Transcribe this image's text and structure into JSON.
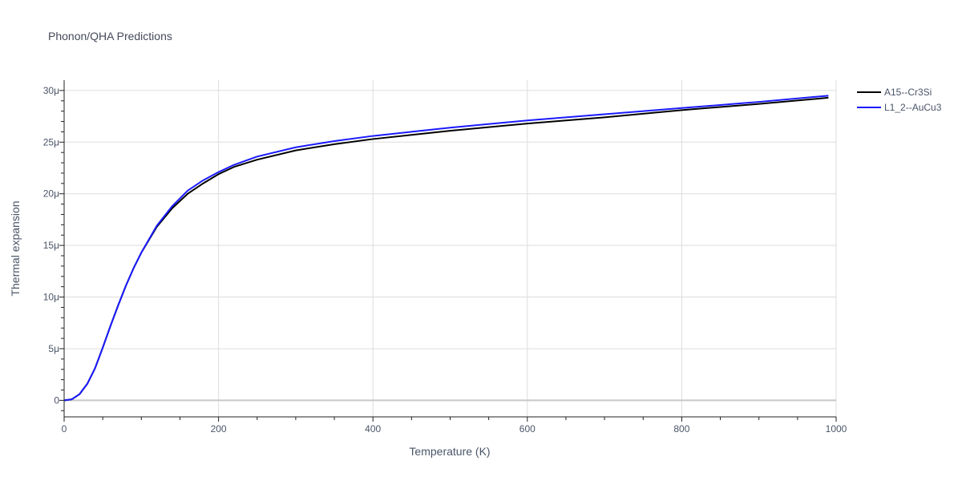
{
  "chart_data": {
    "type": "line",
    "title": "Phonon/QHA Predictions",
    "xlabel": "Temperature (K)",
    "ylabel": "Thermal expansion",
    "xlim": [
      0,
      1000
    ],
    "ylim": [
      -1.6,
      31
    ],
    "grid": true,
    "legend_position": "top-right",
    "x_ticks": [
      0,
      200,
      400,
      600,
      800,
      1000
    ],
    "x_tick_labels": [
      "0",
      "200",
      "400",
      "600",
      "800",
      "1000"
    ],
    "y_ticks": [
      0,
      5,
      10,
      15,
      20,
      25,
      30
    ],
    "y_tick_labels": [
      "0",
      "5μ",
      "10μ",
      "15μ",
      "20μ",
      "25μ",
      "30μ"
    ],
    "y_unit": "μ",
    "series": [
      {
        "name": "A15--Cr3Si",
        "color": "#000000",
        "x": [
          0,
          10,
          20,
          30,
          40,
          50,
          60,
          70,
          80,
          90,
          100,
          120,
          140,
          160,
          180,
          200,
          220,
          250,
          300,
          350,
          400,
          450,
          500,
          600,
          700,
          800,
          900,
          990
        ],
        "y": [
          0,
          0.1,
          0.6,
          1.6,
          3.1,
          5.1,
          7.2,
          9.2,
          11.1,
          12.8,
          14.3,
          16.8,
          18.6,
          20.0,
          21.0,
          21.9,
          22.6,
          23.3,
          24.2,
          24.8,
          25.3,
          25.7,
          26.1,
          26.8,
          27.4,
          28.1,
          28.7,
          29.3
        ]
      },
      {
        "name": "L1_2--AuCu3",
        "color": "#1a1aff",
        "x": [
          0,
          10,
          20,
          30,
          40,
          50,
          60,
          70,
          80,
          90,
          100,
          120,
          140,
          160,
          180,
          200,
          220,
          250,
          300,
          350,
          400,
          450,
          500,
          600,
          700,
          800,
          900,
          990
        ],
        "y": [
          0,
          0.1,
          0.6,
          1.6,
          3.1,
          5.1,
          7.2,
          9.2,
          11.1,
          12.8,
          14.3,
          16.9,
          18.8,
          20.3,
          21.3,
          22.1,
          22.8,
          23.6,
          24.5,
          25.1,
          25.6,
          26.0,
          26.4,
          27.1,
          27.7,
          28.3,
          28.9,
          29.5
        ]
      }
    ]
  }
}
